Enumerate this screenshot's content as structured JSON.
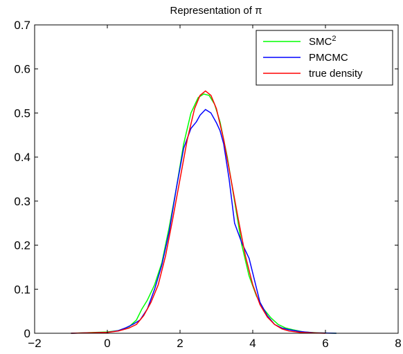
{
  "chart_data": {
    "type": "line",
    "title": "Representation of π",
    "xlim": [
      -2,
      8
    ],
    "ylim": [
      0,
      0.7
    ],
    "xticks": [
      "−2",
      "0",
      "2",
      "4",
      "6",
      "8"
    ],
    "yticks": [
      "0",
      "0.1",
      "0.2",
      "0.3",
      "0.4",
      "0.5",
      "0.6",
      "0.7"
    ],
    "grid": false,
    "legend_position": "top-right",
    "series": [
      {
        "name": "SMC",
        "name_sup": "2",
        "color": "#00ff00",
        "x": [
          -1.0,
          0.0,
          0.3,
          0.6,
          0.8,
          0.95,
          1.1,
          1.3,
          1.5,
          1.7,
          1.9,
          2.1,
          2.3,
          2.5,
          2.65,
          2.8,
          2.95,
          3.1,
          3.3,
          3.5,
          3.7,
          3.9,
          4.1,
          4.3,
          4.5,
          4.7,
          4.9,
          5.1,
          5.4,
          5.8,
          6.3
        ],
        "y": [
          0.0,
          0.003,
          0.006,
          0.015,
          0.03,
          0.055,
          0.075,
          0.11,
          0.16,
          0.24,
          0.33,
          0.43,
          0.5,
          0.535,
          0.543,
          0.54,
          0.52,
          0.48,
          0.4,
          0.3,
          0.2,
          0.13,
          0.085,
          0.055,
          0.035,
          0.02,
          0.012,
          0.008,
          0.003,
          0.001,
          0.0
        ]
      },
      {
        "name": "PMCMC",
        "color": "#0000ff",
        "x": [
          -1.0,
          0.0,
          0.3,
          0.5,
          0.7,
          0.9,
          1.1,
          1.3,
          1.5,
          1.7,
          1.9,
          2.1,
          2.3,
          2.45,
          2.55,
          2.7,
          2.85,
          3.0,
          3.1,
          3.2,
          3.35,
          3.5,
          3.7,
          3.9,
          4.05,
          4.2,
          4.4,
          4.6,
          4.8,
          5.0,
          5.3,
          5.7,
          6.3
        ],
        "y": [
          0.0,
          0.002,
          0.006,
          0.012,
          0.02,
          0.03,
          0.055,
          0.1,
          0.155,
          0.23,
          0.33,
          0.42,
          0.465,
          0.48,
          0.495,
          0.508,
          0.5,
          0.478,
          0.46,
          0.43,
          0.35,
          0.25,
          0.205,
          0.17,
          0.12,
          0.07,
          0.04,
          0.02,
          0.012,
          0.008,
          0.004,
          0.001,
          0.0
        ]
      },
      {
        "name": "true density",
        "color": "#ff0000",
        "x": [
          -1.0,
          0.0,
          0.3,
          0.6,
          0.8,
          1.0,
          1.2,
          1.4,
          1.6,
          1.8,
          2.0,
          2.2,
          2.4,
          2.55,
          2.7,
          2.85,
          3.0,
          3.2,
          3.4,
          3.6,
          3.8,
          4.0,
          4.2,
          4.4,
          4.6,
          4.8,
          5.0,
          5.3,
          5.6,
          6.0
        ],
        "y": [
          0.0,
          0.002,
          0.005,
          0.012,
          0.02,
          0.04,
          0.07,
          0.11,
          0.175,
          0.26,
          0.35,
          0.44,
          0.51,
          0.54,
          0.55,
          0.54,
          0.51,
          0.44,
          0.35,
          0.26,
          0.175,
          0.11,
          0.065,
          0.037,
          0.02,
          0.01,
          0.005,
          0.002,
          0.001,
          0.0
        ]
      }
    ]
  }
}
